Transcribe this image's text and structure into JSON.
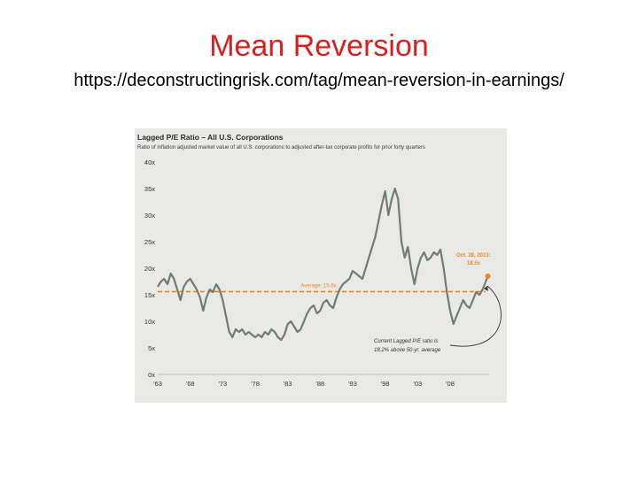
{
  "slide": {
    "title": "Mean Reversion",
    "subtitle": "https://deconstructingrisk.com/tag/mean-reversion-in-earnings/"
  },
  "chart_data": {
    "type": "line",
    "title": "Lagged P/E Ratio – All U.S. Corporations",
    "subtitle": "Ratio of inflation adjusted market value of all U.S. corporations to adjusted after-tax corporate profits for prior forty quarters",
    "x_ticks": [
      "'63",
      "'68",
      "'73",
      "'78",
      "'83",
      "'88",
      "'93",
      "'98",
      "'03",
      "'08"
    ],
    "y_ticks": [
      "0x",
      "5x",
      "10x",
      "15x",
      "20x",
      "25x",
      "30x",
      "35x",
      "40x"
    ],
    "xlim": [
      1963,
      2014
    ],
    "ylim": [
      0,
      40
    ],
    "grid": false,
    "average": {
      "value": 15.6,
      "label": "Average: 15.6x",
      "color": "#e8872a"
    },
    "series": [
      {
        "color": "#6f7d75",
        "x": [
          1963,
          1963.5,
          1964,
          1964.5,
          1965,
          1965.5,
          1966,
          1966.5,
          1967,
          1967.5,
          1968,
          1968.5,
          1969,
          1969.5,
          1970,
          1970.5,
          1971,
          1971.5,
          1972,
          1972.5,
          1973,
          1973.5,
          1974,
          1974.5,
          1975,
          1975.5,
          1976,
          1976.5,
          1977,
          1977.5,
          1978,
          1978.5,
          1979,
          1979.5,
          1980,
          1980.5,
          1981,
          1981.5,
          1982,
          1982.5,
          1983,
          1983.5,
          1984,
          1984.5,
          1985,
          1985.5,
          1986,
          1986.5,
          1987,
          1987.5,
          1988,
          1988.5,
          1989,
          1989.5,
          1990,
          1990.5,
          1991,
          1991.5,
          1992,
          1992.5,
          1993,
          1993.5,
          1994,
          1994.5,
          1995,
          1995.5,
          1996,
          1996.5,
          1997,
          1997.5,
          1998,
          1998.5,
          1999,
          1999.5,
          2000,
          2000.5,
          2001,
          2001.5,
          2002,
          2002.5,
          2003,
          2003.5,
          2004,
          2004.5,
          2005,
          2005.5,
          2006,
          2006.5,
          2007,
          2007.5,
          2008,
          2008.5,
          2009,
          2009.5,
          2010,
          2010.5,
          2011,
          2011.5,
          2012,
          2012.5,
          2013,
          2013.8
        ],
        "y": [
          16.5,
          17.5,
          18,
          17,
          19,
          18,
          16,
          14,
          16.5,
          17.5,
          18,
          17,
          16,
          14.5,
          12,
          14.5,
          16,
          15.5,
          17,
          16,
          14,
          11,
          8,
          7,
          8.5,
          8,
          8.5,
          7.5,
          8,
          7.5,
          7,
          7.5,
          7,
          8,
          7.5,
          8.5,
          8,
          7,
          6.5,
          7.5,
          9.5,
          10,
          9,
          8,
          8.5,
          10,
          11.5,
          12.5,
          13,
          11.5,
          12,
          13.5,
          14,
          13,
          12.5,
          14.5,
          16,
          17,
          17.5,
          18,
          19.5,
          19,
          18.5,
          18,
          20,
          22,
          24,
          26,
          29,
          32,
          34.5,
          30,
          33,
          35,
          33,
          25,
          22,
          24,
          20,
          17,
          20,
          22,
          23,
          21.5,
          22,
          23,
          22.5,
          23.5,
          20,
          15.5,
          12,
          9.5,
          11,
          12.5,
          14,
          13,
          12.5,
          14,
          15.5,
          15,
          16,
          18.5
        ]
      }
    ],
    "annotations": [
      {
        "text_lines": [
          "Oct. 28, 2013:",
          "18.5x"
        ],
        "color": "#e8872a",
        "x": 2013.8,
        "y": 18.5
      },
      {
        "text_lines": [
          "Current Lagged P/E ratio is",
          "18.2% above 50-yr. average"
        ]
      }
    ]
  }
}
